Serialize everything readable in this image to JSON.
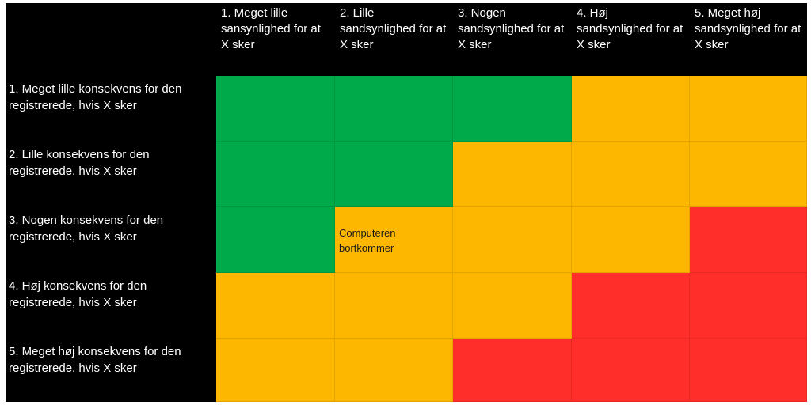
{
  "colors": {
    "green": "#00A94A",
    "amber": "#FDB700",
    "red": "#FF2E2A",
    "header_background": "#000000",
    "header_text": "#FFFFFF"
  },
  "chart_data": {
    "type": "heatmap",
    "columns": [
      "1. Meget lille sansynlighed for at X sker",
      "2. Lille sandsynlighed for at X sker",
      "3. Nogen sandsynlighed for at X sker",
      "4. Høj sandsynlighed for at X sker",
      "5. Meget høj sandsynlighed for at X sker"
    ],
    "rows": [
      "1. Meget lille konsekvens for den registrerede, hvis X sker",
      "2. Lille konsekvens for den registrerede, hvis X sker",
      "3. Nogen konsekvens for den registrerede, hvis X sker",
      "4. Høj konsekvens for den registrerede, hvis X sker",
      "5. Meget høj konsekvens for den registrerede, hvis X sker"
    ],
    "cells": [
      [
        "green",
        "green",
        "green",
        "amber",
        "amber"
      ],
      [
        "green",
        "green",
        "amber",
        "amber",
        "amber"
      ],
      [
        "green",
        "amber",
        "amber",
        "amber",
        "red"
      ],
      [
        "amber",
        "amber",
        "amber",
        "red",
        "red"
      ],
      [
        "amber",
        "amber",
        "red",
        "red",
        "red"
      ]
    ],
    "annotations": [
      {
        "row": 2,
        "col": 1,
        "text": "Computeren bortkommer"
      }
    ]
  }
}
